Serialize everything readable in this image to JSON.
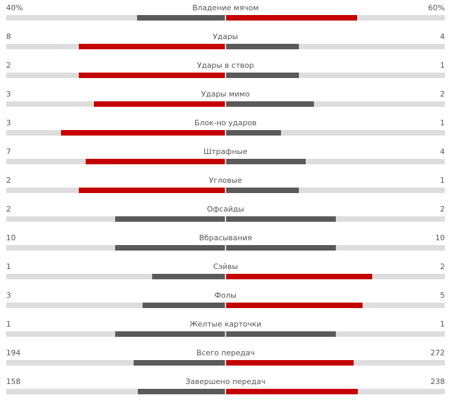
{
  "colors": {
    "leading": "#c50000",
    "trailing": "#5a5a5a",
    "track": "#dddddd"
  },
  "stats": [
    {
      "name": "Владение мячом",
      "home": "40%",
      "away": "60%",
      "home_value": 40,
      "away_value": 60
    },
    {
      "name": "Удары",
      "home": "8",
      "away": "4",
      "home_value": 8,
      "away_value": 4
    },
    {
      "name": "Удары в створ",
      "home": "2",
      "away": "1",
      "home_value": 2,
      "away_value": 1
    },
    {
      "name": "Удары мимо",
      "home": "3",
      "away": "2",
      "home_value": 3,
      "away_value": 2
    },
    {
      "name": "Блок-но ударов",
      "home": "3",
      "away": "1",
      "home_value": 3,
      "away_value": 1
    },
    {
      "name": "Штрафные",
      "home": "7",
      "away": "4",
      "home_value": 7,
      "away_value": 4
    },
    {
      "name": "Угловые",
      "home": "2",
      "away": "1",
      "home_value": 2,
      "away_value": 1
    },
    {
      "name": "Офсайды",
      "home": "2",
      "away": "2",
      "home_value": 2,
      "away_value": 2
    },
    {
      "name": "Вбрасывания",
      "home": "10",
      "away": "10",
      "home_value": 10,
      "away_value": 10
    },
    {
      "name": "Сэйвы",
      "home": "1",
      "away": "2",
      "home_value": 1,
      "away_value": 2
    },
    {
      "name": "Фолы",
      "home": "3",
      "away": "5",
      "home_value": 3,
      "away_value": 5
    },
    {
      "name": "Желтые карточки",
      "home": "1",
      "away": "1",
      "home_value": 1,
      "away_value": 1
    },
    {
      "name": "Всего передач",
      "home": "194",
      "away": "272",
      "home_value": 194,
      "away_value": 272
    },
    {
      "name": "Завершено передач",
      "home": "158",
      "away": "238",
      "home_value": 158,
      "away_value": 238
    }
  ]
}
